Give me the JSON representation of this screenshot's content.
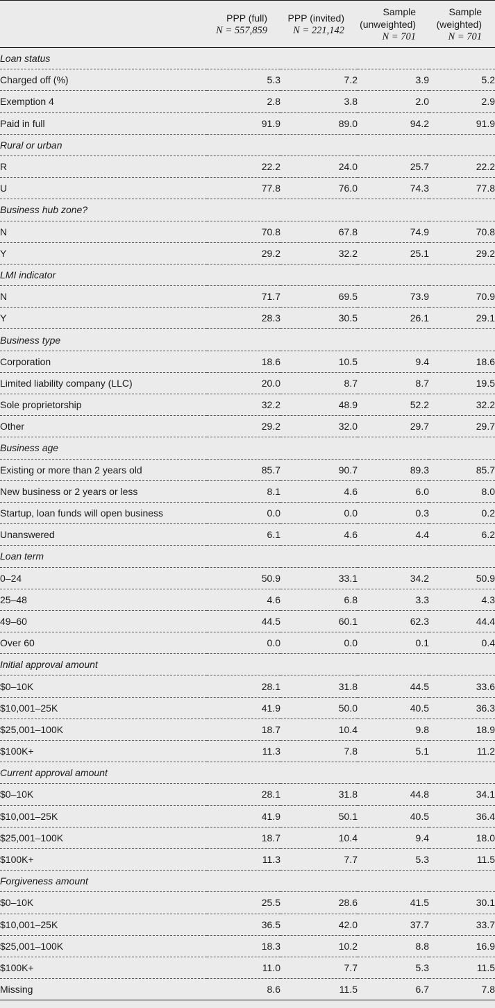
{
  "columns": [
    {
      "title": "PPP (full)",
      "n": "N = 557,859"
    },
    {
      "title": "PPP (invited)",
      "n": "N = 221,142"
    },
    {
      "title": [
        "Sample",
        "(unweighted)"
      ],
      "n": "N = 701"
    },
    {
      "title": [
        "Sample",
        "(weighted)"
      ],
      "n": "N = 701"
    }
  ],
  "sections": [
    {
      "title": "Loan status",
      "rows": [
        {
          "label": "Charged off (%)",
          "values": [
            "5.3",
            "7.2",
            "3.9",
            "5.2"
          ]
        },
        {
          "label": "Exemption 4",
          "values": [
            "2.8",
            "3.8",
            "2.0",
            "2.9"
          ]
        },
        {
          "label": "Paid in full",
          "values": [
            "91.9",
            "89.0",
            "94.2",
            "91.9"
          ]
        }
      ]
    },
    {
      "title": "Rural or urban",
      "rows": [
        {
          "label": "R",
          "values": [
            "22.2",
            "24.0",
            "25.7",
            "22.2"
          ]
        },
        {
          "label": "U",
          "values": [
            "77.8",
            "76.0",
            "74.3",
            "77.8"
          ]
        }
      ]
    },
    {
      "title": "Business hub zone?",
      "rows": [
        {
          "label": "N",
          "values": [
            "70.8",
            "67.8",
            "74.9",
            "70.8"
          ]
        },
        {
          "label": "Y",
          "values": [
            "29.2",
            "32.2",
            "25.1",
            "29.2"
          ]
        }
      ]
    },
    {
      "title": "LMI indicator",
      "rows": [
        {
          "label": "N",
          "values": [
            "71.7",
            "69.5",
            "73.9",
            "70.9"
          ]
        },
        {
          "label": "Y",
          "values": [
            "28.3",
            "30.5",
            "26.1",
            "29.1"
          ]
        }
      ]
    },
    {
      "title": "Business type",
      "rows": [
        {
          "label": "Corporation",
          "values": [
            "18.6",
            "10.5",
            "9.4",
            "18.6"
          ]
        },
        {
          "label": "Limited liability company (LLC)",
          "values": [
            "20.0",
            "8.7",
            "8.7",
            "19.5"
          ]
        },
        {
          "label": "Sole proprietorship",
          "values": [
            "32.2",
            "48.9",
            "52.2",
            "32.2"
          ]
        },
        {
          "label": "Other",
          "values": [
            "29.2",
            "32.0",
            "29.7",
            "29.7"
          ]
        }
      ]
    },
    {
      "title": "Business age",
      "rows": [
        {
          "label": "Existing or more than 2 years old",
          "values": [
            "85.7",
            "90.7",
            "89.3",
            "85.7"
          ]
        },
        {
          "label": "New business or 2 years or less",
          "values": [
            "8.1",
            "4.6",
            "6.0",
            "8.0"
          ]
        },
        {
          "label": "Startup, loan funds will open business",
          "values": [
            "0.0",
            "0.0",
            "0.3",
            "0.2"
          ]
        },
        {
          "label": "Unanswered",
          "values": [
            "6.1",
            "4.6",
            "4.4",
            "6.2"
          ]
        }
      ]
    },
    {
      "title": "Loan term",
      "rows": [
        {
          "label": "0–24",
          "values": [
            "50.9",
            "33.1",
            "34.2",
            "50.9"
          ]
        },
        {
          "label": "25–48",
          "values": [
            "4.6",
            "6.8",
            "3.3",
            "4.3"
          ]
        },
        {
          "label": "49–60",
          "values": [
            "44.5",
            "60.1",
            "62.3",
            "44.4"
          ]
        },
        {
          "label": "Over 60",
          "values": [
            "0.0",
            "0.0",
            "0.1",
            "0.4"
          ]
        }
      ]
    },
    {
      "title": "Initial approval amount",
      "rows": [
        {
          "label": "$0–10K",
          "values": [
            "28.1",
            "31.8",
            "44.5",
            "33.6"
          ]
        },
        {
          "label": "$10,001–25K",
          "values": [
            "41.9",
            "50.0",
            "40.5",
            "36.3"
          ]
        },
        {
          "label": "$25,001–100K",
          "values": [
            "18.7",
            "10.4",
            "9.8",
            "18.9"
          ]
        },
        {
          "label": "$100K+",
          "values": [
            "11.3",
            "7.8",
            "5.1",
            "11.2"
          ]
        }
      ]
    },
    {
      "title": "Current approval amount",
      "rows": [
        {
          "label": "$0–10K",
          "values": [
            "28.1",
            "31.8",
            "44.8",
            "34.1"
          ]
        },
        {
          "label": "$10,001–25K",
          "values": [
            "41.9",
            "50.1",
            "40.5",
            "36.4"
          ]
        },
        {
          "label": "$25,001–100K",
          "values": [
            "18.7",
            "10.4",
            "9.4",
            "18.0"
          ]
        },
        {
          "label": "$100K+",
          "values": [
            "11.3",
            "7.7",
            "5.3",
            "11.5"
          ]
        }
      ]
    },
    {
      "title": "Forgiveness amount",
      "rows": [
        {
          "label": "$0–10K",
          "values": [
            "25.5",
            "28.6",
            "41.5",
            "30.1"
          ]
        },
        {
          "label": "$10,001–25K",
          "values": [
            "36.5",
            "42.0",
            "37.7",
            "33.7"
          ]
        },
        {
          "label": "$25,001–100K",
          "values": [
            "18.3",
            "10.2",
            "8.8",
            "16.9"
          ]
        },
        {
          "label": "$100K+",
          "values": [
            "11.0",
            "7.7",
            "5.3",
            "11.5"
          ]
        },
        {
          "label": "Missing",
          "values": [
            "8.6",
            "11.5",
            "6.7",
            "7.8"
          ]
        }
      ]
    }
  ]
}
